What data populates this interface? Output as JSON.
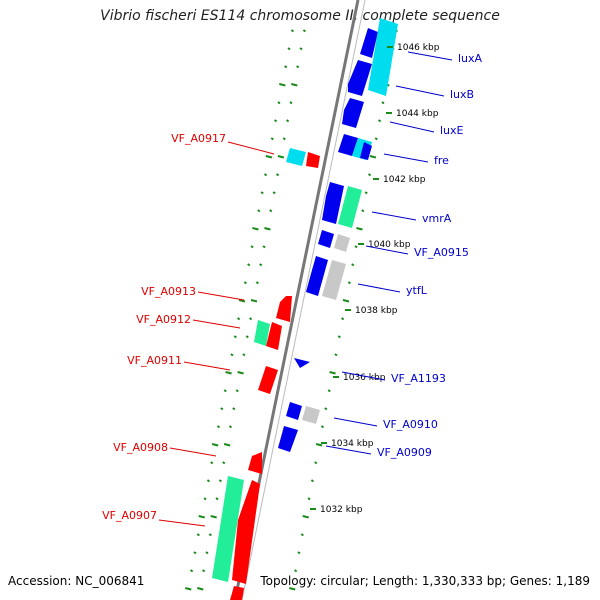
{
  "title": "Vibrio fischeri ES114 chromosome II, complete sequence",
  "footer": {
    "accession": "Accession: NC_006841",
    "summary": "Topology: circular; Length: 1,330,333 bp; Genes: 1,189"
  },
  "colors": {
    "label_left": "#e00000",
    "label_right": "#0000cc",
    "kbp_dot": "#1a8a1a",
    "backbone": "#777777",
    "red": "#ff0000",
    "blue": "#0000ee",
    "cyan": "#00ddee",
    "green": "#22ee99",
    "gray": "#c8c8c8"
  },
  "kbp_labels": [
    "1046 kbp",
    "1044 kbp",
    "1042 kbp",
    "1040 kbp",
    "1038 kbp",
    "1036 kbp",
    "1034 kbp",
    "1032 kbp"
  ],
  "gene_labels_right": [
    "luxA",
    "luxB",
    "luxE",
    "fre",
    "vmrA",
    "VF_A0915",
    "ytfL",
    "VF_A1193",
    "VF_A0910",
    "VF_A0909"
  ],
  "gene_labels_left": [
    "VF_A0917",
    "VF_A0913",
    "VF_A0912",
    "VF_A0911",
    "VF_A0908",
    "VF_A0907"
  ]
}
